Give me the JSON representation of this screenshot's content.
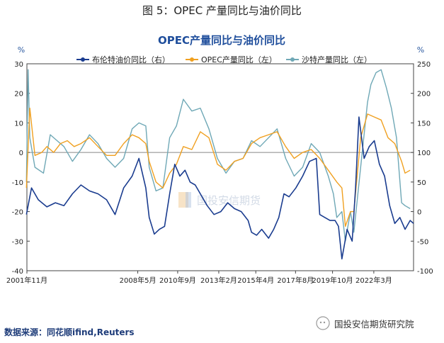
{
  "figure_title": "图 5：OPEC 产量同比与油价同比",
  "source_note": "数据来源：同花顺ifind,Reuters",
  "brand": "国投安信期货研究院",
  "watermark": "国投安信期货",
  "colors": {
    "brent": "#1a3c8f",
    "opec": "#f0a020",
    "saudi": "#6fa8b6",
    "title": "#1f4e9c"
  },
  "chart_data": {
    "type": "line",
    "title": "OPEC产量同比与油价同比",
    "left_axis": {
      "unit": "%",
      "ylim": [
        -40,
        30
      ],
      "ticks": [
        30,
        20,
        10,
        0,
        -10,
        -20,
        -30,
        -40
      ]
    },
    "right_axis": {
      "unit": "%",
      "ylim": [
        -100,
        250
      ],
      "ticks": [
        250,
        200,
        150,
        100,
        50,
        0,
        -50,
        -100
      ]
    },
    "x_range": [
      2001.83,
      2024.5
    ],
    "x_ticks": [
      {
        "value": 2001.83,
        "label": "2001年11月"
      },
      {
        "value": 2008.33,
        "label": "2008年5月"
      },
      {
        "value": 2010.67,
        "label": "2010年9月"
      },
      {
        "value": 2013.08,
        "label": "2013年2月"
      },
      {
        "value": 2015.25,
        "label": "2015年4月"
      },
      {
        "value": 2017.58,
        "label": "2017年8月"
      },
      {
        "value": 2019.75,
        "label": "2019年10月"
      },
      {
        "value": 2022.17,
        "label": "2022年3月"
      }
    ],
    "series": [
      {
        "name": "布伦特油价同比（右）",
        "axis": "right",
        "color": "#1a3c8f",
        "x": [
          2001.8,
          2002.1,
          2002.5,
          2003.0,
          2003.5,
          2004.0,
          2004.5,
          2005.0,
          2005.5,
          2006.0,
          2006.5,
          2007.0,
          2007.5,
          2008.0,
          2008.4,
          2008.8,
          2009.0,
          2009.3,
          2009.6,
          2009.9,
          2010.2,
          2010.5,
          2010.8,
          2011.1,
          2011.4,
          2011.7,
          2012.0,
          2012.4,
          2012.8,
          2013.2,
          2013.6,
          2014.0,
          2014.4,
          2014.8,
          2015.0,
          2015.3,
          2015.6,
          2016.0,
          2016.3,
          2016.6,
          2016.9,
          2017.2,
          2017.6,
          2018.0,
          2018.4,
          2018.8,
          2019.0,
          2019.3,
          2019.6,
          2019.9,
          2020.1,
          2020.3,
          2020.45,
          2020.6,
          2020.9,
          2021.1,
          2021.3,
          2021.6,
          2021.9,
          2022.2,
          2022.5,
          2022.8,
          2023.1,
          2023.4,
          2023.7,
          2024.0,
          2024.3,
          2024.5
        ],
        "y": [
          -5,
          40,
          20,
          8,
          15,
          10,
          30,
          45,
          35,
          30,
          20,
          -5,
          40,
          60,
          90,
          40,
          -10,
          -38,
          -30,
          -25,
          30,
          80,
          60,
          70,
          50,
          45,
          30,
          10,
          -5,
          0,
          15,
          5,
          0,
          -15,
          -35,
          -40,
          -30,
          -45,
          -30,
          -10,
          30,
          25,
          40,
          60,
          85,
          90,
          -5,
          -10,
          -15,
          -15,
          -25,
          -80,
          -55,
          -30,
          -50,
          40,
          160,
          90,
          110,
          120,
          80,
          60,
          10,
          -20,
          -10,
          -30,
          -15,
          -20
        ]
      },
      {
        "name": "OPEC产量同比（左）",
        "axis": "left",
        "color": "#f0a020",
        "x": [
          2001.8,
          2002.0,
          2002.3,
          2002.7,
          2003.0,
          2003.4,
          2003.8,
          2004.2,
          2004.6,
          2005.0,
          2005.5,
          2006.0,
          2006.5,
          2007.0,
          2007.5,
          2008.0,
          2008.4,
          2008.8,
          2009.0,
          2009.4,
          2009.8,
          2010.2,
          2010.6,
          2011.0,
          2011.5,
          2012.0,
          2012.5,
          2013.0,
          2013.5,
          2014.0,
          2014.5,
          2015.0,
          2015.5,
          2016.0,
          2016.5,
          2017.0,
          2017.5,
          2018.0,
          2018.5,
          2019.0,
          2019.5,
          2020.0,
          2020.3,
          2020.5,
          2020.8,
          2021.0,
          2021.4,
          2021.8,
          2022.2,
          2022.6,
          2023.0,
          2023.4,
          2023.8,
          2024.0,
          2024.3
        ],
        "y": [
          -12,
          15,
          -1,
          0,
          2,
          0,
          3,
          4,
          2,
          3,
          5,
          2,
          -1,
          -1,
          3,
          6,
          5,
          3,
          -3,
          -10,
          -12,
          -7,
          -4,
          2,
          1,
          7,
          5,
          -4,
          -6,
          -3,
          -2,
          3,
          5,
          6,
          7,
          2,
          -2,
          0,
          1,
          -2,
          -6,
          -10,
          -12,
          -25,
          -20,
          -20,
          5,
          13,
          12,
          11,
          5,
          3,
          -3,
          -7,
          -6
        ]
      },
      {
        "name": "沙特产量同比（左）",
        "axis": "left",
        "color": "#6fa8b6",
        "x": [
          2001.8,
          2001.9,
          2002.0,
          2002.3,
          2002.8,
          2003.2,
          2003.6,
          2004.0,
          2004.5,
          2005.0,
          2005.5,
          2006.0,
          2006.5,
          2007.0,
          2007.5,
          2008.0,
          2008.4,
          2008.8,
          2009.0,
          2009.4,
          2009.8,
          2010.2,
          2010.6,
          2011.0,
          2011.5,
          2012.0,
          2012.5,
          2013.0,
          2013.5,
          2014.0,
          2014.5,
          2015.0,
          2015.5,
          2016.0,
          2016.5,
          2017.0,
          2017.5,
          2018.0,
          2018.5,
          2019.0,
          2019.5,
          2019.8,
          2020.0,
          2020.3,
          2020.5,
          2020.8,
          2021.0,
          2021.4,
          2021.8,
          2022.0,
          2022.3,
          2022.6,
          2022.9,
          2023.2,
          2023.5,
          2023.8,
          2024.0,
          2024.3
        ],
        "y": [
          -10,
          28,
          5,
          -5,
          -7,
          6,
          4,
          2,
          -3,
          1,
          6,
          3,
          -2,
          -5,
          -2,
          8,
          10,
          9,
          -5,
          -13,
          -12,
          5,
          9,
          18,
          14,
          15,
          8,
          -2,
          -7,
          -3,
          -2,
          4,
          2,
          5,
          8,
          -2,
          -8,
          -5,
          3,
          0,
          -8,
          -14,
          -22,
          -20,
          -30,
          -20,
          -27,
          -5,
          17,
          23,
          27,
          28,
          22,
          15,
          5,
          -17,
          -18,
          -19
        ]
      }
    ]
  }
}
